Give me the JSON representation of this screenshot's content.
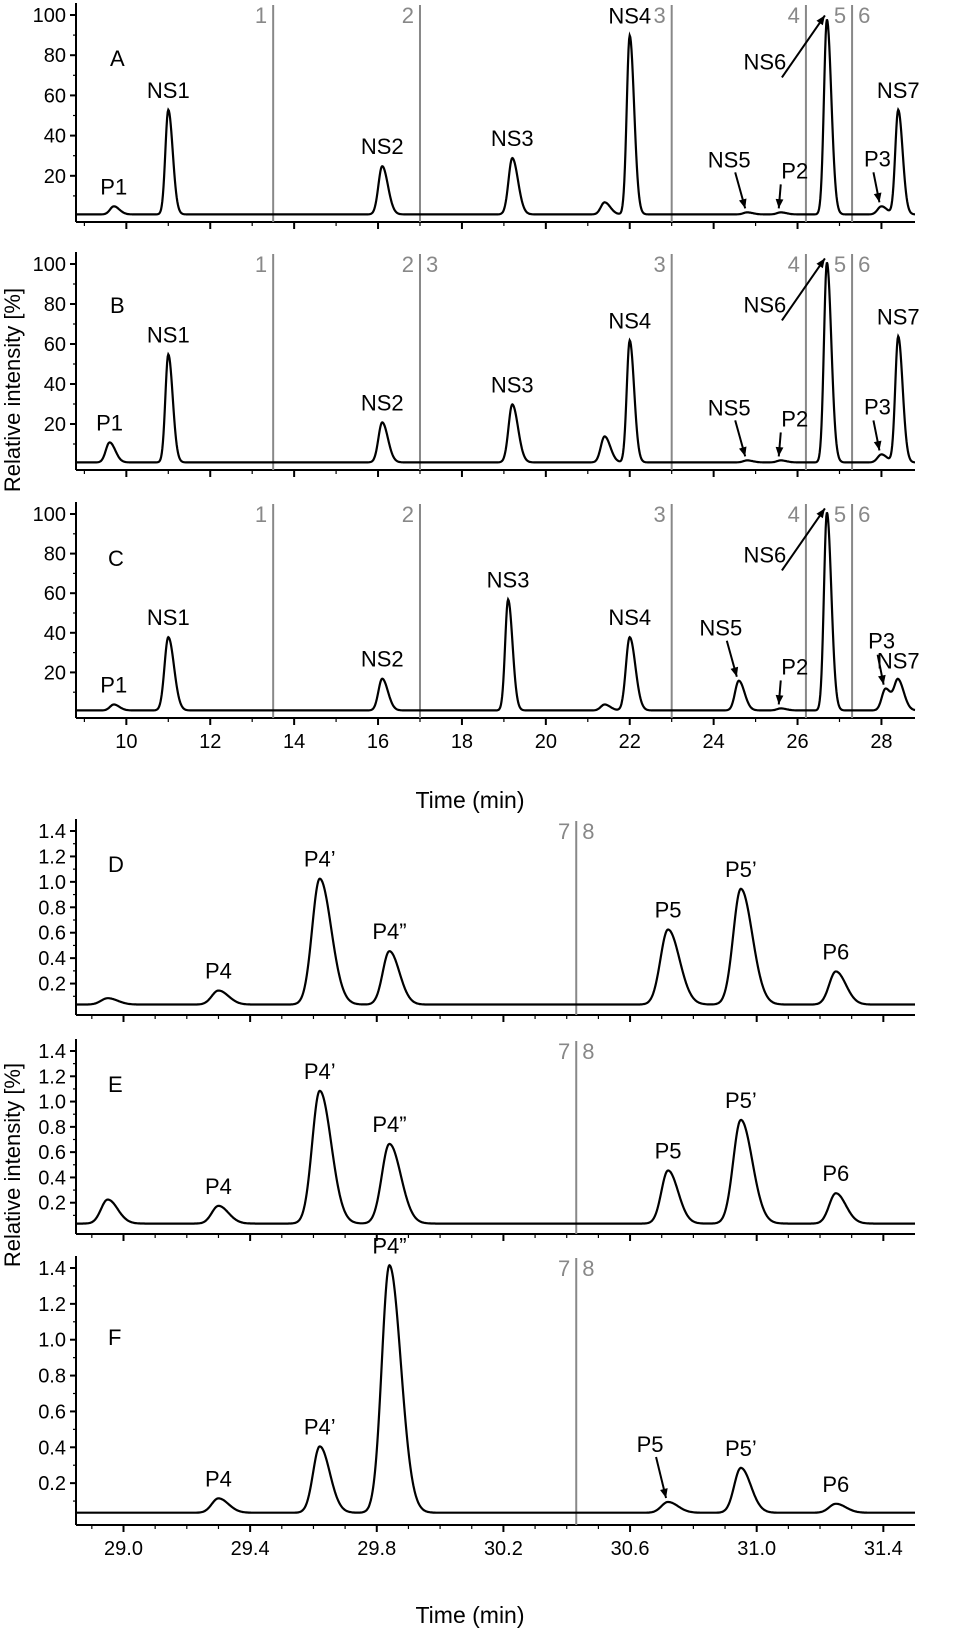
{
  "top_block": {
    "ylabel": "Relative intensity [%]",
    "xlabel": "Time (min)",
    "x_ticks": [
      "10",
      "12",
      "14",
      "16",
      "18",
      "20",
      "22",
      "24",
      "26",
      "28"
    ],
    "y_ticks": [
      "20",
      "40",
      "60",
      "80",
      "100"
    ]
  },
  "bottom_block": {
    "ylabel": "Relative intensity [%]",
    "xlabel": "Time (min)",
    "x_ticks": [
      "29.0",
      "29.4",
      "29.8",
      "30.2",
      "30.6",
      "31.0",
      "31.4"
    ],
    "y_ticks": [
      "0.2",
      "0.4",
      "0.6",
      "0.8",
      "1.0",
      "1.2",
      "1.4"
    ]
  },
  "chart_data": [
    {
      "type": "line",
      "panel": "A",
      "xlim": [
        8.8,
        28.8
      ],
      "ylim": [
        0,
        100
      ],
      "fractions": [
        {
          "x": 13.5,
          "label": "1"
        },
        {
          "x": 17.0,
          "label": "2"
        },
        {
          "x": 23.0,
          "label": "3"
        },
        {
          "x": 26.2,
          "label": "4"
        },
        {
          "x": 27.3,
          "label": "5"
        },
        {
          "x": 27.3,
          "label": "6"
        }
      ],
      "peaks": [
        {
          "label": "P1",
          "x": 9.7,
          "y": 4
        },
        {
          "label": "NS1",
          "x": 11.0,
          "y": 52
        },
        {
          "label": "NS2",
          "x": 16.1,
          "y": 24
        },
        {
          "label": "NS3",
          "x": 19.2,
          "y": 28
        },
        {
          "label": "",
          "x": 21.4,
          "y": 6
        },
        {
          "label": "NS4",
          "x": 22.0,
          "y": 89
        },
        {
          "label": "NS5",
          "x": 24.8,
          "y": 1
        },
        {
          "label": "P2",
          "x": 25.6,
          "y": 1
        },
        {
          "label": "NS6",
          "x": 26.7,
          "y": 97
        },
        {
          "label": "P3",
          "x": 28.0,
          "y": 4
        },
        {
          "label": "NS7",
          "x": 28.4,
          "y": 52
        }
      ]
    },
    {
      "type": "line",
      "panel": "B",
      "xlim": [
        8.8,
        28.8
      ],
      "ylim": [
        0,
        100
      ],
      "fractions": [
        {
          "x": 13.5,
          "label": "1"
        },
        {
          "x": 17.0,
          "label": "2"
        },
        {
          "x": 17.0,
          "label": "3"
        },
        {
          "x": 23.0,
          "label": "3"
        },
        {
          "x": 26.2,
          "label": "4"
        },
        {
          "x": 27.3,
          "label": "5"
        },
        {
          "x": 27.3,
          "label": "6"
        }
      ],
      "peaks": [
        {
          "label": "P1",
          "x": 9.6,
          "y": 10
        },
        {
          "label": "NS1",
          "x": 11.0,
          "y": 54
        },
        {
          "label": "NS2",
          "x": 16.1,
          "y": 20
        },
        {
          "label": "NS3",
          "x": 19.2,
          "y": 29
        },
        {
          "label": "",
          "x": 21.4,
          "y": 13
        },
        {
          "label": "NS4",
          "x": 22.0,
          "y": 61
        },
        {
          "label": "NS5",
          "x": 24.8,
          "y": 1
        },
        {
          "label": "P2",
          "x": 25.6,
          "y": 1
        },
        {
          "label": "NS6",
          "x": 26.7,
          "y": 100
        },
        {
          "label": "P3",
          "x": 28.0,
          "y": 4
        },
        {
          "label": "NS7",
          "x": 28.4,
          "y": 63
        }
      ]
    },
    {
      "type": "line",
      "panel": "C",
      "xlim": [
        8.8,
        28.8
      ],
      "ylim": [
        0,
        100
      ],
      "fractions": [
        {
          "x": 13.5,
          "label": "1"
        },
        {
          "x": 17.0,
          "label": "2"
        },
        {
          "x": 23.0,
          "label": "3"
        },
        {
          "x": 26.2,
          "label": "4"
        },
        {
          "x": 27.3,
          "label": "5"
        },
        {
          "x": 27.3,
          "label": "6"
        }
      ],
      "peaks": [
        {
          "label": "P1",
          "x": 9.7,
          "y": 3
        },
        {
          "label": "NS1",
          "x": 11.0,
          "y": 37
        },
        {
          "label": "NS2",
          "x": 16.1,
          "y": 16
        },
        {
          "label": "NS3",
          "x": 19.1,
          "y": 56
        },
        {
          "label": "",
          "x": 21.4,
          "y": 3
        },
        {
          "label": "NS4",
          "x": 22.0,
          "y": 37
        },
        {
          "label": "NS5",
          "x": 24.6,
          "y": 15
        },
        {
          "label": "P2",
          "x": 25.6,
          "y": 1
        },
        {
          "label": "NS6",
          "x": 26.7,
          "y": 100
        },
        {
          "label": "P3",
          "x": 28.1,
          "y": 11
        },
        {
          "label": "NS7",
          "x": 28.4,
          "y": 15
        }
      ]
    },
    {
      "type": "line",
      "panel": "D",
      "xlim": [
        28.85,
        31.5
      ],
      "ylim": [
        0,
        1.4
      ],
      "fractions": [
        {
          "x": 30.43,
          "label": "7"
        },
        {
          "x": 30.43,
          "label": "8"
        }
      ],
      "peaks": [
        {
          "label": "",
          "x": 28.95,
          "y": 0.05
        },
        {
          "label": "P4",
          "x": 29.3,
          "y": 0.11
        },
        {
          "label": "P4’",
          "x": 29.62,
          "y": 0.99
        },
        {
          "label": "P4”",
          "x": 29.84,
          "y": 0.42
        },
        {
          "label": "P5",
          "x": 30.72,
          "y": 0.59
        },
        {
          "label": "P5’",
          "x": 30.95,
          "y": 0.91
        },
        {
          "label": "P6",
          "x": 31.25,
          "y": 0.26
        }
      ]
    },
    {
      "type": "line",
      "panel": "E",
      "xlim": [
        28.85,
        31.5
      ],
      "ylim": [
        0,
        1.4
      ],
      "fractions": [
        {
          "x": 30.43,
          "label": "7"
        },
        {
          "x": 30.43,
          "label": "8"
        }
      ],
      "peaks": [
        {
          "label": "",
          "x": 28.95,
          "y": 0.19
        },
        {
          "label": "P4",
          "x": 29.3,
          "y": 0.14
        },
        {
          "label": "P4’",
          "x": 29.62,
          "y": 1.05
        },
        {
          "label": "P4”",
          "x": 29.84,
          "y": 0.63
        },
        {
          "label": "P5",
          "x": 30.72,
          "y": 0.42
        },
        {
          "label": "P5’",
          "x": 30.95,
          "y": 0.82
        },
        {
          "label": "P6",
          "x": 31.25,
          "y": 0.24
        }
      ]
    },
    {
      "type": "line",
      "panel": "F",
      "xlim": [
        28.85,
        31.5
      ],
      "ylim": [
        0,
        1.4
      ],
      "fractions": [
        {
          "x": 30.43,
          "label": "7"
        },
        {
          "x": 30.43,
          "label": "8"
        }
      ],
      "peaks": [
        {
          "label": "P4",
          "x": 29.3,
          "y": 0.08
        },
        {
          "label": "P4’",
          "x": 29.62,
          "y": 0.37
        },
        {
          "label": "P4”",
          "x": 29.84,
          "y": 1.38
        },
        {
          "label": "P5",
          "x": 30.72,
          "y": 0.06
        },
        {
          "label": "P5’",
          "x": 30.95,
          "y": 0.25
        },
        {
          "label": "P6",
          "x": 31.25,
          "y": 0.05
        }
      ]
    }
  ]
}
